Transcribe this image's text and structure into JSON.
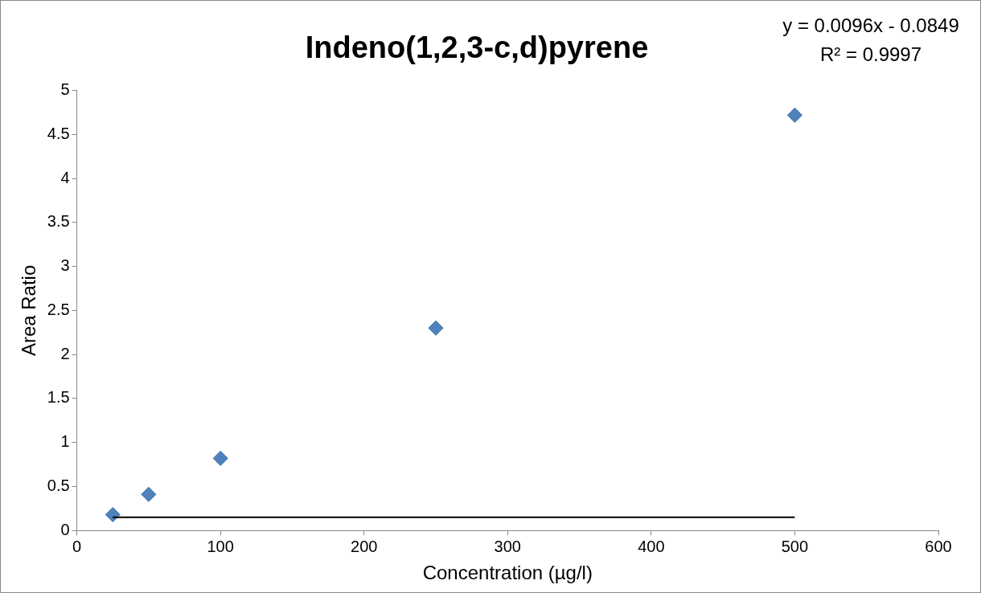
{
  "chart_data": {
    "type": "scatter",
    "title": "Indeno(1,2,3-c,d)pyrene",
    "xlabel": "Concentration (µg/l)",
    "ylabel": "Area Ratio",
    "x": [
      25,
      50,
      100,
      250,
      500
    ],
    "series": [
      {
        "color": "#4f81bd",
        "values": [
          0.18,
          0.41,
          0.82,
          2.3,
          4.72
        ],
        "marker": "diamond"
      },
      {
        "type": "line",
        "color": "#000000",
        "x": [
          25,
          500
        ],
        "values": [
          0.15,
          0.15
        ],
        "marker": "none",
        "line_style": "solid"
      }
    ],
    "xlim": [
      0,
      600
    ],
    "xticks": [
      0,
      100,
      200,
      300,
      400,
      500,
      600
    ],
    "ylim": [
      0,
      5
    ],
    "yticks": [
      0,
      0.5,
      1,
      1.5,
      2,
      2.5,
      3,
      3.5,
      4,
      4.5,
      5
    ],
    "grid": false,
    "legend": false,
    "annotations": [
      "y = 0.0096x - 0.0849",
      "R² = 0.9997"
    ]
  }
}
